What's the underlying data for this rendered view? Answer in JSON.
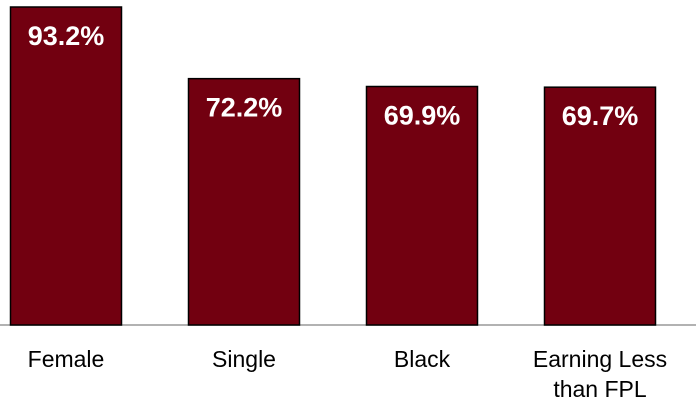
{
  "chart_data": {
    "type": "bar",
    "categories": [
      "Female",
      "Single",
      "Black",
      "Earning Less than FPL"
    ],
    "values": [
      93.2,
      72.2,
      69.9,
      69.7
    ],
    "value_labels": [
      "93.2%",
      "72.2%",
      "69.9%",
      "69.7%"
    ],
    "color": "#720010"
  }
}
